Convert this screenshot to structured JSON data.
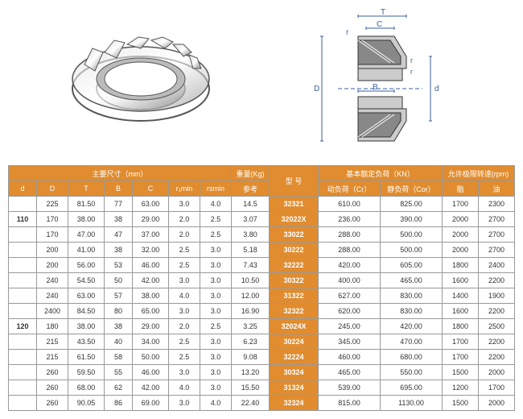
{
  "headers": {
    "dim_group": "主要尺寸（mm）",
    "weight": "重量(Kg)",
    "weight_sub": "参考",
    "model": "型  号",
    "load_group": "基本额定负荷（KN）",
    "speed_group": "允许极限转速(rpm)",
    "d": "d",
    "D": "D",
    "T": "T",
    "B": "B",
    "C": "C",
    "r1min": "r₁min",
    "rsmin": "rsmin",
    "dyn": "动负荷（Cr）",
    "stat": "静负荷（Cor）",
    "grease": "脂",
    "oil": "油"
  },
  "diagram_labels": {
    "T": "T",
    "C": "C",
    "r": "r",
    "D": "D",
    "B": "B",
    "d": "d"
  },
  "rows": [
    {
      "d": "",
      "D": "225",
      "T": "81.50",
      "B": "77",
      "C": "63.00",
      "r1": "3.0",
      "rs": "4.0",
      "w": "14.5",
      "m": "32321",
      "dyn": "610.00",
      "st": "825.00",
      "g": "1700",
      "o": "2300"
    },
    {
      "d": "110",
      "D": "170",
      "T": "38.00",
      "B": "38",
      "C": "29.00",
      "r1": "2.0",
      "rs": "2.5",
      "w": "3.07",
      "m": "32022X",
      "dyn": "236.00",
      "st": "390.00",
      "g": "2000",
      "o": "2700"
    },
    {
      "d": "",
      "D": "170",
      "T": "47.00",
      "B": "47",
      "C": "37.00",
      "r1": "2.0",
      "rs": "2.5",
      "w": "3.80",
      "m": "33022",
      "dyn": "288.00",
      "st": "500.00",
      "g": "2000",
      "o": "2700"
    },
    {
      "d": "",
      "D": "200",
      "T": "41.00",
      "B": "38",
      "C": "32.00",
      "r1": "2.5",
      "rs": "3.0",
      "w": "5.18",
      "m": "30222",
      "dyn": "288.00",
      "st": "500.00",
      "g": "2000",
      "o": "2700"
    },
    {
      "d": "",
      "D": "200",
      "T": "56.00",
      "B": "53",
      "C": "46.00",
      "r1": "2.5",
      "rs": "3.0",
      "w": "7.43",
      "m": "32222",
      "dyn": "420.00",
      "st": "605.00",
      "g": "1800",
      "o": "2400"
    },
    {
      "d": "",
      "D": "240",
      "T": "54.50",
      "B": "50",
      "C": "42.00",
      "r1": "3.0",
      "rs": "3.0",
      "w": "10.50",
      "m": "30322",
      "dyn": "400.00",
      "st": "465.00",
      "g": "1600",
      "o": "2200"
    },
    {
      "d": "",
      "D": "240",
      "T": "63.00",
      "B": "57",
      "C": "38.00",
      "r1": "4.0",
      "rs": "3.0",
      "w": "12.00",
      "m": "31322",
      "dyn": "627.00",
      "st": "830.00",
      "g": "1400",
      "o": "1900"
    },
    {
      "d": "",
      "D": "2400",
      "T": "84.50",
      "B": "80",
      "C": "65.00",
      "r1": "3.0",
      "rs": "3.0",
      "w": "16.90",
      "m": "32322",
      "dyn": "620.00",
      "st": "830.00",
      "g": "1600",
      "o": "2200"
    },
    {
      "d": "120",
      "D": "180",
      "T": "38.00",
      "B": "38",
      "C": "29.00",
      "r1": "2.0",
      "rs": "2.5",
      "w": "3.25",
      "m": "32024X",
      "dyn": "245.00",
      "st": "420.00",
      "g": "1800",
      "o": "2500"
    },
    {
      "d": "",
      "D": "215",
      "T": "43.50",
      "B": "40",
      "C": "34.00",
      "r1": "2.5",
      "rs": "3.0",
      "w": "6.23",
      "m": "30224",
      "dyn": "345.00",
      "st": "470.00",
      "g": "1700",
      "o": "2200"
    },
    {
      "d": "",
      "D": "215",
      "T": "61.50",
      "B": "58",
      "C": "50.00",
      "r1": "2.5",
      "rs": "3.0",
      "w": "9.08",
      "m": "32224",
      "dyn": "460.00",
      "st": "680.00",
      "g": "1700",
      "o": "2200"
    },
    {
      "d": "",
      "D": "260",
      "T": "59.50",
      "B": "55",
      "C": "46.00",
      "r1": "3.0",
      "rs": "3.0",
      "w": "13.20",
      "m": "30324",
      "dyn": "465.00",
      "st": "550.00",
      "g": "1500",
      "o": "2000"
    },
    {
      "d": "",
      "D": "260",
      "T": "68.00",
      "B": "62",
      "C": "42.00",
      "r1": "4.0",
      "rs": "3.0",
      "w": "15.50",
      "m": "31324",
      "dyn": "539.00",
      "st": "695.00",
      "g": "1200",
      "o": "1700"
    },
    {
      "d": "",
      "D": "260",
      "T": "90.05",
      "B": "86",
      "C": "69.00",
      "r1": "3.0",
      "rs": "4.0",
      "w": "22.40",
      "m": "32324",
      "dyn": "815.00",
      "st": "1130.00",
      "g": "1500",
      "o": "2000"
    }
  ],
  "colors": {
    "header_bg": "#e08c2f",
    "header_fg": "#ffffff",
    "border": "#999999"
  }
}
